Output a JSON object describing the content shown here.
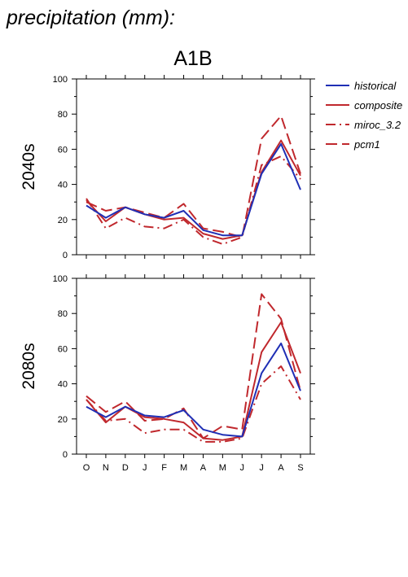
{
  "page_title": "precipitation (mm):",
  "chart_data": {
    "type": "line",
    "title": "A1B",
    "categories": [
      "O",
      "N",
      "D",
      "J",
      "F",
      "M",
      "A",
      "M",
      "J",
      "J",
      "A",
      "S"
    ],
    "ylim": [
      0,
      100
    ],
    "yticks": [
      0,
      20,
      40,
      60,
      80,
      100
    ],
    "grid": false,
    "legend_position": "right",
    "legend": [
      {
        "name": "historical",
        "color": "#1f2fb5",
        "dash": "solid"
      },
      {
        "name": "composite",
        "color": "#c0282d",
        "dash": "solid"
      },
      {
        "name": "miroc_3.2",
        "color": "#c0282d",
        "dash": "dashdot"
      },
      {
        "name": "pcm1",
        "color": "#c0282d",
        "dash": "longdash"
      }
    ],
    "panels": [
      {
        "label": "2040s",
        "series": [
          {
            "name": "historical",
            "values": [
              28,
              21,
              27,
              23,
              21,
              25,
              14,
              11,
              11,
              46,
              63,
              37
            ]
          },
          {
            "name": "composite",
            "values": [
              31,
              19,
              27,
              23,
              20,
              21,
              12,
              9,
              11,
              47,
              65,
              45
            ]
          },
          {
            "name": "miroc_3.2",
            "values": [
              32,
              15,
              21,
              16,
              15,
              20,
              10,
              6,
              10,
              51,
              56,
              43
            ]
          },
          {
            "name": "pcm1",
            "values": [
              30,
              25,
              27,
              24,
              21,
              29,
              15,
              13,
              10,
              66,
              79,
              46
            ]
          }
        ]
      },
      {
        "label": "2080s",
        "series": [
          {
            "name": "historical",
            "values": [
              27,
              21,
              27,
              22,
              21,
              25,
              14,
              11,
              10,
              46,
              63,
              36
            ]
          },
          {
            "name": "composite",
            "values": [
              31,
              18,
              27,
              21,
              20,
              18,
              9,
              8,
              10,
              58,
              75,
              46
            ]
          },
          {
            "name": "miroc_3.2",
            "values": [
              31,
              19,
              20,
              12,
              14,
              14,
              7,
              7,
              9,
              40,
              50,
              31
            ]
          },
          {
            "name": "pcm1",
            "values": [
              33,
              24,
              30,
              19,
              20,
              26,
              9,
              16,
              14,
              91,
              77,
              36
            ]
          }
        ]
      }
    ]
  }
}
